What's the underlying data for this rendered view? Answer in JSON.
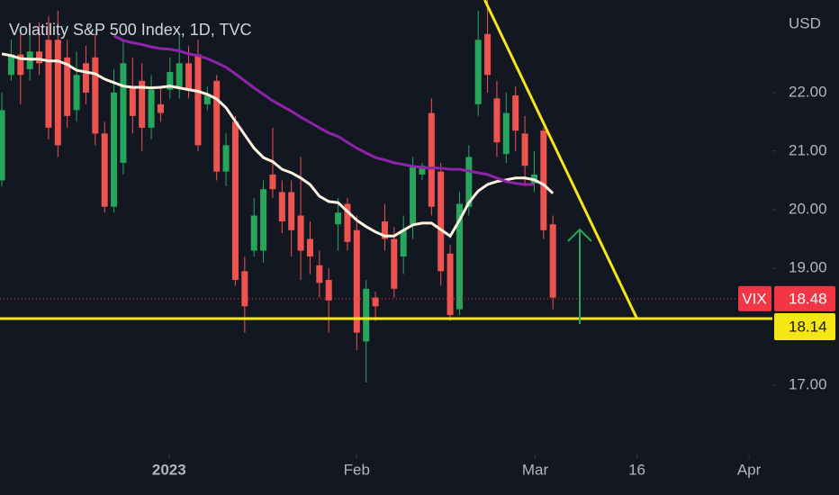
{
  "chart_data": {
    "type": "candlestick",
    "title": "Volatility S&P 500 Index, 1D, TVC",
    "currency": "USD",
    "up_color": "#26a65b",
    "down_color": "#ef5350",
    "x": [
      0,
      1,
      2,
      3,
      4,
      5,
      6,
      7,
      8,
      9,
      10,
      11,
      12,
      13,
      14,
      15,
      16,
      17,
      18,
      19,
      20,
      21,
      22,
      23,
      24,
      25,
      26,
      27,
      28,
      29,
      30,
      31,
      32,
      33,
      34,
      35,
      36,
      37,
      38,
      39,
      40,
      41,
      42,
      43,
      44,
      45,
      46,
      47,
      48,
      49,
      50,
      51,
      52,
      53,
      54,
      55,
      56,
      57,
      58,
      59
    ],
    "open": [
      20.5,
      22.3,
      22.65,
      22.4,
      22.7,
      22.9,
      22.9,
      22.6,
      21.7,
      22.5,
      22.6,
      21.3,
      20.05,
      20.8,
      22.1,
      22.2,
      21.4,
      21.8,
      22.05,
      22.1,
      22.5,
      22.65,
      21.8,
      22.2,
      20.65,
      21.5,
      18.95,
      19.3,
      19.3,
      20.6,
      20.3,
      20.3,
      19.9,
      19.5,
      19.05,
      18.8,
      19.75,
      20.1,
      19.65,
      17.75,
      18.5,
      19.8,
      19.5,
      19.2,
      19.75,
      20.6,
      21.65,
      20.65,
      19.25,
      18.3,
      20.05,
      21.8,
      23.0,
      21.9,
      20.95,
      21.95,
      21.3,
      20.45,
      21.35,
      19.75
    ],
    "high": [
      22.0,
      22.9,
      23.0,
      23.1,
      23.2,
      23.3,
      23.4,
      22.9,
      22.7,
      22.8,
      23.0,
      21.5,
      22.4,
      22.9,
      22.6,
      22.5,
      22.3,
      22.1,
      22.6,
      23.0,
      22.8,
      22.9,
      22.1,
      22.3,
      21.3,
      21.6,
      19.2,
      20.2,
      20.5,
      21.4,
      20.5,
      20.5,
      20.9,
      19.8,
      19.3,
      19.0,
      20.2,
      20.2,
      19.9,
      18.8,
      18.6,
      20.1,
      19.7,
      19.9,
      20.9,
      20.8,
      21.9,
      20.8,
      19.4,
      20.3,
      21.1,
      23.4,
      23.6,
      22.2,
      22.0,
      22.1,
      21.6,
      21.0,
      21.4,
      19.9
    ],
    "low": [
      20.4,
      22.2,
      21.8,
      22.2,
      22.3,
      21.2,
      20.9,
      21.4,
      21.5,
      21.8,
      21.1,
      19.95,
      19.95,
      20.6,
      21.3,
      21.0,
      21.2,
      21.5,
      21.9,
      21.9,
      21.9,
      21.0,
      21.7,
      20.5,
      20.4,
      18.7,
      17.9,
      19.2,
      19.1,
      20.2,
      19.6,
      19.2,
      18.8,
      18.9,
      18.5,
      17.9,
      19.3,
      19.3,
      17.6,
      17.05,
      18.1,
      19.3,
      18.5,
      18.9,
      19.5,
      20.5,
      19.9,
      18.7,
      18.1,
      18.2,
      19.9,
      21.6,
      22.0,
      20.9,
      20.8,
      21.0,
      20.4,
      20.3,
      19.5,
      18.3
    ],
    "close": [
      21.7,
      22.65,
      22.3,
      22.7,
      22.5,
      21.4,
      21.1,
      21.6,
      22.3,
      22.0,
      21.3,
      20.05,
      22.0,
      22.5,
      21.6,
      21.4,
      22.05,
      21.65,
      22.35,
      22.5,
      22.05,
      21.1,
      21.95,
      20.65,
      21.1,
      18.8,
      18.35,
      19.9,
      20.35,
      20.35,
      19.8,
      19.65,
      19.3,
      19.2,
      18.75,
      18.45,
      19.95,
      19.45,
      17.9,
      18.65,
      18.35,
      19.5,
      18.65,
      19.65,
      20.75,
      20.75,
      20.05,
      18.95,
      18.2,
      20.1,
      20.9,
      22.9,
      22.3,
      21.15,
      21.65,
      21.35,
      20.75,
      20.6,
      19.65,
      18.5
    ],
    "overlays": [
      {
        "color": "#fff3e0",
        "values": [
          22.66,
          22.63,
          22.58,
          22.57,
          22.57,
          22.54,
          22.54,
          22.48,
          22.38,
          22.35,
          22.32,
          22.23,
          22.17,
          22.11,
          22.09,
          22.09,
          22.08,
          22.09,
          22.11,
          22.08,
          22.05,
          22.02,
          21.97,
          21.89,
          21.74,
          21.51,
          21.28,
          21.05,
          20.89,
          20.82,
          20.69,
          20.63,
          20.54,
          20.43,
          20.23,
          20.14,
          20.12,
          19.97,
          19.82,
          19.71,
          19.62,
          19.55,
          19.55,
          19.65,
          19.74,
          19.77,
          19.77,
          19.66,
          19.55,
          19.82,
          20.12,
          20.32,
          20.43,
          20.48,
          20.51,
          20.54,
          20.54,
          20.51,
          20.43,
          20.28
        ]
      },
      {
        "color": "#8e24aa",
        "values": [
          null,
          null,
          null,
          null,
          null,
          null,
          null,
          null,
          null,
          null,
          null,
          null,
          22.97,
          22.89,
          22.85,
          22.82,
          22.78,
          22.75,
          22.74,
          22.71,
          22.66,
          22.63,
          22.58,
          22.51,
          22.43,
          22.32,
          22.2,
          22.08,
          21.97,
          21.86,
          21.77,
          21.68,
          21.58,
          21.49,
          21.4,
          21.31,
          21.25,
          21.15,
          21.05,
          20.97,
          20.89,
          20.85,
          20.8,
          20.77,
          20.74,
          20.72,
          20.71,
          20.71,
          20.69,
          20.69,
          20.66,
          20.63,
          20.6,
          20.54,
          20.48,
          20.45,
          20.43,
          20.43,
          null,
          null
        ]
      }
    ],
    "trendline": {
      "color": "#f5e616",
      "x": [
        51.7,
        68.0
      ],
      "y": [
        23.58,
        18.14
      ]
    },
    "level": 18.14,
    "level_color": "#f5e616",
    "last_price": {
      "label": "VIX",
      "value": 18.48,
      "color": "#f23645"
    },
    "xlim": [
      -0.2,
      82.5
    ],
    "ylim": [
      15.82,
      23.58
    ],
    "yticks": [
      {
        "value": 17,
        "label": "17.00"
      },
      {
        "value": 19,
        "label": "19.00"
      },
      {
        "value": 20,
        "label": "20.00"
      },
      {
        "value": 21,
        "label": "21.00"
      },
      {
        "value": 22,
        "label": "22.00"
      }
    ],
    "xticks": [
      {
        "value": 17.9,
        "label": "2023"
      },
      {
        "value": 38.0,
        "label": "Feb"
      },
      {
        "value": 57.1,
        "label": "Mar"
      },
      {
        "value": 68.0,
        "label": "16"
      },
      {
        "value": 80.0,
        "label": "Apr"
      }
    ],
    "grid": false
  }
}
